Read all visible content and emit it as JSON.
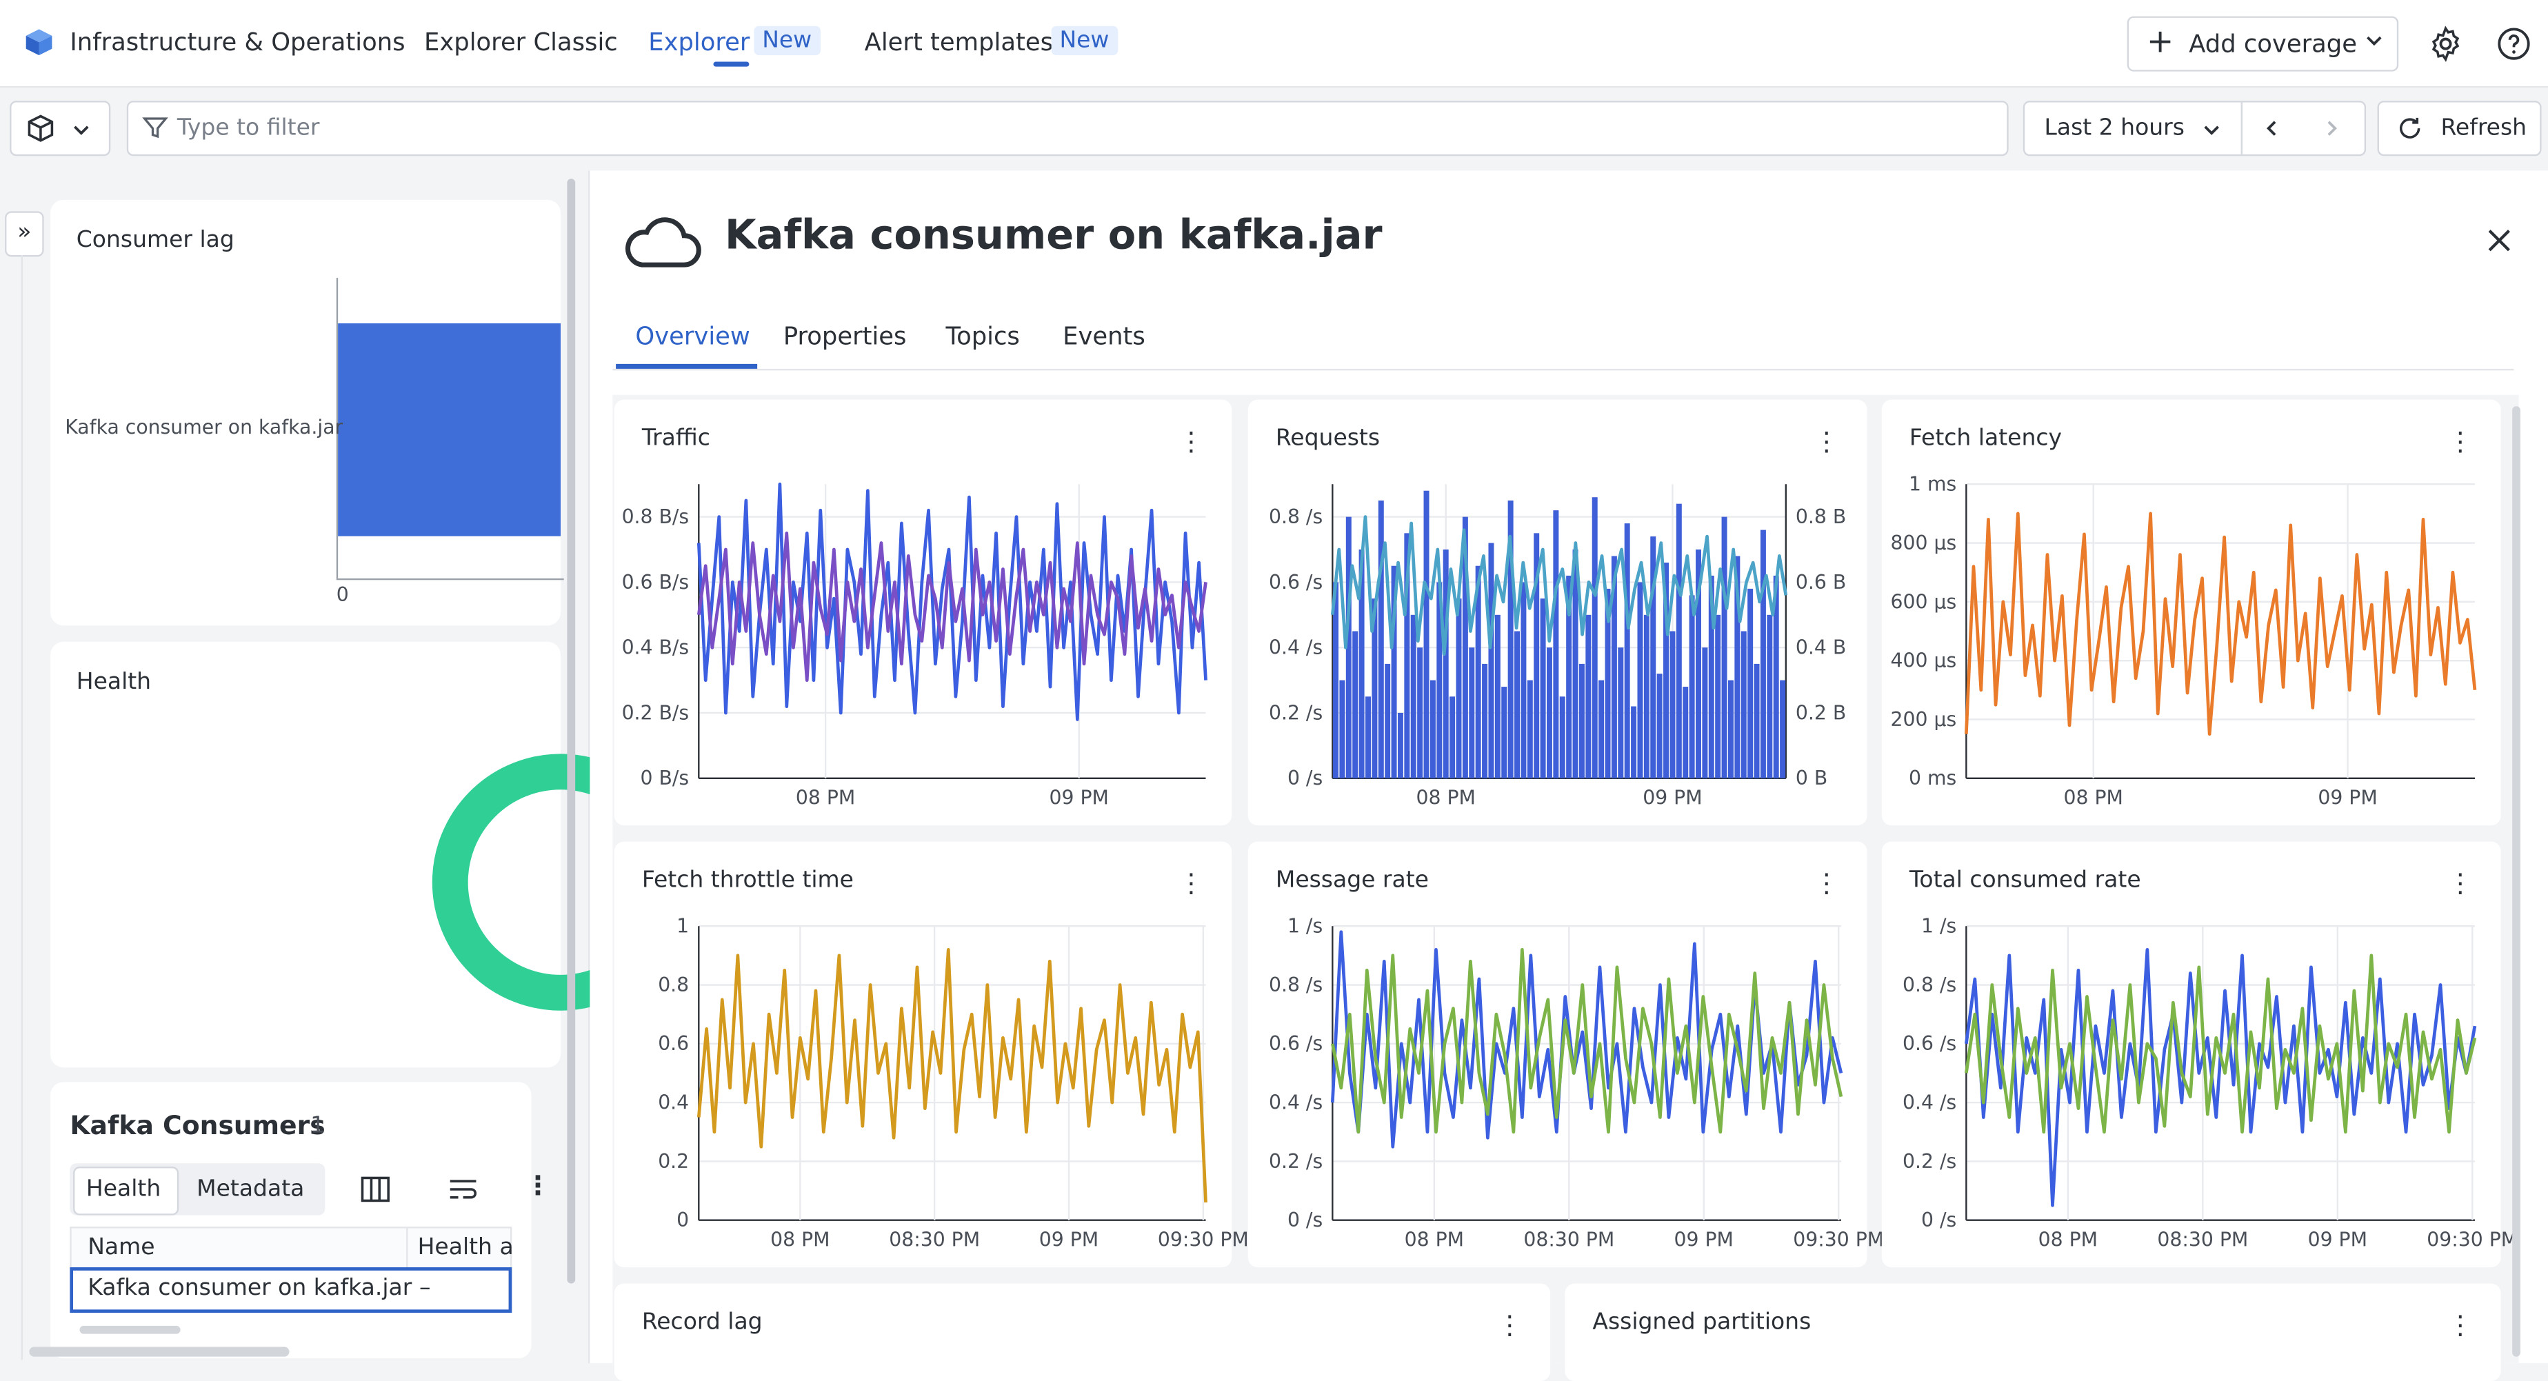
{
  "topnav": {
    "app_name": "Infrastructure & Operations",
    "explorer_classic": "Explorer Classic",
    "explorer": "Explorer",
    "explorer_badge": "New",
    "alert_templates": "Alert templates",
    "alert_badge": "New",
    "add_coverage": "Add coverage"
  },
  "filterbar": {
    "placeholder": "Type to filter",
    "timeframe": "Last 2 hours",
    "refresh": "Refresh"
  },
  "left": {
    "consumer_lag": {
      "title": "Consumer lag",
      "bar_label": "Kafka consumer on kafka.jar",
      "axis_zero": "0"
    },
    "health": {
      "title": "Health"
    },
    "consumers": {
      "title": "Kafka Consumers",
      "count": "1",
      "tab_health": "Health",
      "tab_metadata": "Metadata",
      "col_name": "Name",
      "col_health": "Health a",
      "row_name": "Kafka consumer on kafka.jar",
      "row_health": "–"
    }
  },
  "detail": {
    "title": "Kafka consumer on kafka.jar",
    "tabs": [
      "Overview",
      "Properties",
      "Topics",
      "Events"
    ],
    "tiles": {
      "traffic": "Traffic",
      "requests": "Requests",
      "fetch_latency": "Fetch latency",
      "fetch_throttle": "Fetch throttle time",
      "message_rate": "Message rate",
      "total_consumed": "Total consumed rate",
      "record_lag": "Record lag",
      "assigned_partitions": "Assigned partitions"
    }
  },
  "colors": {
    "accent": "#2f63c8",
    "bar_blue": "#3f6ed8",
    "health_green": "#2fcf95",
    "line_blue": "#3b5fe0",
    "line_purple": "#7a4fc6",
    "line_teal": "#4ba3c8",
    "line_orange": "#e97b2b",
    "line_gold": "#d39a1e",
    "line_green": "#7db448"
  },
  "chart_data": [
    {
      "type": "line",
      "title": "Traffic",
      "x_ticks": [
        "08 PM",
        "09 PM"
      ],
      "y_ticks": [
        "0 B/s",
        "0.2 B/s",
        "0.4 B/s",
        "0.6 B/s",
        "0.8 B/s"
      ],
      "ylim": [
        0,
        0.9
      ],
      "series": [
        {
          "color": "#3b5fe0",
          "values": [
            0.72,
            0.3,
            0.55,
            0.8,
            0.2,
            0.6,
            0.45,
            0.85,
            0.25,
            0.5,
            0.7,
            0.35,
            0.9,
            0.22,
            0.6,
            0.48,
            0.75,
            0.3,
            0.82,
            0.4,
            0.55,
            0.2,
            0.7,
            0.6,
            0.38,
            0.88,
            0.25,
            0.5,
            0.66,
            0.3,
            0.78,
            0.45,
            0.2,
            0.6,
            0.82,
            0.35,
            0.58,
            0.7,
            0.25,
            0.48,
            0.86,
            0.3,
            0.62,
            0.4,
            0.75,
            0.22,
            0.55,
            0.8,
            0.35,
            0.6,
            0.45,
            0.7,
            0.28,
            0.84,
            0.4,
            0.6,
            0.18,
            0.72,
            0.5,
            0.38,
            0.8,
            0.3,
            0.62,
            0.45,
            0.7,
            0.25,
            0.56,
            0.82,
            0.35,
            0.6,
            0.48,
            0.2,
            0.75,
            0.4,
            0.66,
            0.3
          ]
        },
        {
          "color": "#7a4fc6",
          "values": [
            0.5,
            0.65,
            0.4,
            0.55,
            0.7,
            0.35,
            0.6,
            0.45,
            0.72,
            0.5,
            0.38,
            0.62,
            0.48,
            0.75,
            0.4,
            0.58,
            0.3,
            0.66,
            0.52,
            0.44,
            0.7,
            0.36,
            0.6,
            0.48,
            0.64,
            0.4,
            0.56,
            0.72,
            0.45,
            0.6,
            0.35,
            0.68,
            0.5,
            0.42,
            0.62,
            0.55,
            0.4,
            0.66,
            0.48,
            0.58,
            0.36,
            0.7,
            0.5,
            0.6,
            0.42,
            0.64,
            0.38,
            0.56,
            0.7,
            0.45,
            0.6,
            0.5,
            0.66,
            0.4,
            0.58,
            0.48,
            0.72,
            0.35,
            0.62,
            0.5,
            0.44,
            0.6,
            0.55,
            0.38,
            0.68,
            0.46,
            0.58,
            0.42,
            0.64,
            0.5,
            0.56,
            0.4,
            0.6,
            0.52,
            0.45,
            0.6
          ]
        }
      ]
    },
    {
      "type": "bar",
      "title": "Requests",
      "x_ticks": [
        "08 PM",
        "09 PM"
      ],
      "y_ticks": [
        "0 /s",
        "0.2 /s",
        "0.4 /s",
        "0.6 /s",
        "0.8 /s"
      ],
      "y2_ticks": [
        "0 B",
        "0.2 B",
        "0.4 B",
        "0.6 B",
        "0.8 B"
      ],
      "ylim": [
        0,
        0.9
      ],
      "series": [
        {
          "color": "#3f5fd8",
          "values": [
            0.6,
            0.3,
            0.8,
            0.45,
            0.7,
            0.25,
            0.55,
            0.85,
            0.35,
            0.65,
            0.2,
            0.75,
            0.5,
            0.4,
            0.88,
            0.3,
            0.6,
            0.7,
            0.25,
            0.55,
            0.8,
            0.4,
            0.65,
            0.35,
            0.72,
            0.5,
            0.28,
            0.85,
            0.45,
            0.6,
            0.3,
            0.75,
            0.55,
            0.4,
            0.82,
            0.25,
            0.62,
            0.7,
            0.35,
            0.5,
            0.86,
            0.3,
            0.58,
            0.68,
            0.4,
            0.78,
            0.22,
            0.6,
            0.5,
            0.74,
            0.32,
            0.66,
            0.45,
            0.84,
            0.28,
            0.56,
            0.7,
            0.4,
            0.62,
            0.5,
            0.8,
            0.3,
            0.68,
            0.45,
            0.58,
            0.35,
            0.76,
            0.5,
            0.62,
            0.3
          ]
        },
        {
          "color": "#4ba3c8",
          "values": [
            0.5,
            0.7,
            0.4,
            0.65,
            0.55,
            0.8,
            0.45,
            0.6,
            0.72,
            0.4,
            0.66,
            0.5,
            0.78,
            0.42,
            0.6,
            0.55,
            0.7,
            0.38,
            0.64,
            0.5,
            0.76,
            0.45,
            0.58,
            0.68,
            0.4,
            0.62,
            0.54,
            0.74,
            0.46,
            0.66,
            0.52,
            0.6,
            0.7,
            0.42,
            0.58,
            0.64,
            0.5,
            0.72,
            0.44,
            0.6,
            0.56,
            0.68,
            0.48,
            0.62,
            0.7,
            0.46,
            0.58,
            0.66,
            0.5,
            0.6,
            0.72,
            0.44,
            0.62,
            0.56,
            0.68,
            0.5,
            0.6,
            0.74,
            0.46,
            0.64,
            0.52,
            0.7,
            0.48,
            0.6,
            0.66,
            0.54,
            0.62,
            0.5,
            0.68,
            0.56
          ]
        }
      ]
    },
    {
      "type": "line",
      "title": "Fetch latency",
      "x_ticks": [
        "08 PM",
        "09 PM"
      ],
      "y_ticks": [
        "0 ms",
        "200 µs",
        "400 µs",
        "600 µs",
        "800 µs",
        "1 ms"
      ],
      "ylim": [
        0,
        1000
      ],
      "series": [
        {
          "color": "#e97b2b",
          "values": [
            150,
            720,
            300,
            880,
            250,
            600,
            420,
            900,
            350,
            520,
            280,
            760,
            400,
            620,
            180,
            540,
            830,
            300,
            470,
            650,
            260,
            580,
            720,
            340,
            500,
            900,
            220,
            610,
            380,
            760,
            290,
            540,
            680,
            150,
            450,
            820,
            330,
            600,
            480,
            700,
            260,
            520,
            640,
            310,
            860,
            400,
            560,
            240,
            680,
            380,
            500,
            620,
            300,
            760,
            440,
            590,
            220,
            700,
            360,
            520,
            640,
            280,
            880,
            420,
            580,
            320,
            700,
            460,
            540,
            300
          ]
        }
      ]
    },
    {
      "type": "line",
      "title": "Fetch throttle time",
      "x_ticks": [
        "08 PM",
        "08:30 PM",
        "09 PM",
        "09:30 PM"
      ],
      "y_ticks": [
        "0",
        "0.2",
        "0.4",
        "0.6",
        "0.8",
        "1"
      ],
      "ylim": [
        0,
        1
      ],
      "series": [
        {
          "color": "#d39a1e",
          "values": [
            0.35,
            0.65,
            0.3,
            0.75,
            0.45,
            0.9,
            0.4,
            0.6,
            0.25,
            0.7,
            0.5,
            0.85,
            0.35,
            0.62,
            0.48,
            0.78,
            0.3,
            0.55,
            0.9,
            0.4,
            0.68,
            0.32,
            0.8,
            0.5,
            0.6,
            0.28,
            0.72,
            0.45,
            0.86,
            0.38,
            0.64,
            0.5,
            0.92,
            0.3,
            0.58,
            0.7,
            0.42,
            0.8,
            0.35,
            0.62,
            0.48,
            0.75,
            0.3,
            0.66,
            0.52,
            0.88,
            0.4,
            0.6,
            0.45,
            0.72,
            0.32,
            0.58,
            0.68,
            0.4,
            0.8,
            0.5,
            0.62,
            0.36,
            0.74,
            0.46,
            0.58,
            0.3,
            0.7,
            0.52,
            0.64,
            0.06
          ]
        }
      ]
    },
    {
      "type": "line",
      "title": "Message rate",
      "x_ticks": [
        "08 PM",
        "08:30 PM",
        "09 PM",
        "09:30 PM"
      ],
      "y_ticks": [
        "0 /s",
        "0.2 /s",
        "0.4 /s",
        "0.6 /s",
        "0.8 /s",
        "1 /s"
      ],
      "ylim": [
        0,
        1
      ],
      "series": [
        {
          "color": "#3b5fe0",
          "values": [
            0.4,
            0.98,
            0.5,
            0.3,
            0.7,
            0.45,
            0.88,
            0.25,
            0.6,
            0.4,
            0.75,
            0.3,
            0.92,
            0.5,
            0.35,
            0.68,
            0.45,
            0.82,
            0.28,
            0.6,
            0.5,
            0.72,
            0.35,
            0.9,
            0.42,
            0.58,
            0.3,
            0.76,
            0.5,
            0.64,
            0.38,
            0.86,
            0.45,
            0.6,
            0.3,
            0.72,
            0.52,
            0.4,
            0.8,
            0.35,
            0.62,
            0.48,
            0.94,
            0.3,
            0.58,
            0.7,
            0.42,
            0.66,
            0.36,
            0.8,
            0.5,
            0.6,
            0.3,
            0.74,
            0.46,
            0.56,
            0.88,
            0.4,
            0.62,
            0.5
          ]
        },
        {
          "color": "#7db448",
          "values": [
            0.6,
            0.45,
            0.7,
            0.3,
            0.85,
            0.55,
            0.4,
            0.9,
            0.35,
            0.65,
            0.5,
            0.78,
            0.3,
            0.6,
            0.72,
            0.4,
            0.88,
            0.5,
            0.36,
            0.7,
            0.56,
            0.3,
            0.92,
            0.45,
            0.62,
            0.75,
            0.35,
            0.68,
            0.5,
            0.8,
            0.42,
            0.6,
            0.3,
            0.86,
            0.55,
            0.4,
            0.72,
            0.6,
            0.35,
            0.82,
            0.5,
            0.66,
            0.4,
            0.76,
            0.52,
            0.3,
            0.7,
            0.58,
            0.44,
            0.84,
            0.38,
            0.62,
            0.5,
            0.74,
            0.36,
            0.68,
            0.46,
            0.8,
            0.55,
            0.42
          ]
        }
      ]
    },
    {
      "type": "line",
      "title": "Total consumed rate",
      "x_ticks": [
        "08 PM",
        "08:30 PM",
        "09 PM",
        "09:30 PM"
      ],
      "y_ticks": [
        "0 /s",
        "0.2 /s",
        "0.4 /s",
        "0.6 /s",
        "0.8 /s",
        "1 /s"
      ],
      "ylim": [
        0,
        1
      ],
      "series": [
        {
          "color": "#3b5fe0",
          "values": [
            0.6,
            0.82,
            0.35,
            0.7,
            0.45,
            0.9,
            0.3,
            0.62,
            0.5,
            0.75,
            0.05,
            0.58,
            0.4,
            0.85,
            0.3,
            0.66,
            0.5,
            0.78,
            0.35,
            0.6,
            0.45,
            0.92,
            0.3,
            0.58,
            0.7,
            0.4,
            0.84,
            0.5,
            0.62,
            0.35,
            0.78,
            0.46,
            0.9,
            0.3,
            0.6,
            0.52,
            0.76,
            0.4,
            0.66,
            0.3,
            0.86,
            0.5,
            0.58,
            0.42,
            0.74,
            0.36,
            0.62,
            0.5,
            0.82,
            0.4,
            0.6,
            0.3,
            0.7,
            0.46,
            0.56,
            0.8,
            0.38,
            0.62,
            0.5,
            0.66
          ]
        },
        {
          "color": "#7db448",
          "values": [
            0.5,
            0.7,
            0.4,
            0.8,
            0.55,
            0.35,
            0.72,
            0.5,
            0.62,
            0.3,
            0.85,
            0.45,
            0.6,
            0.38,
            0.76,
            0.52,
            0.3,
            0.68,
            0.48,
            0.8,
            0.4,
            0.6,
            0.55,
            0.32,
            0.74,
            0.5,
            0.42,
            0.86,
            0.36,
            0.62,
            0.5,
            0.7,
            0.3,
            0.64,
            0.45,
            0.82,
            0.38,
            0.58,
            0.5,
            0.72,
            0.34,
            0.66,
            0.48,
            0.6,
            0.3,
            0.78,
            0.44,
            0.9,
            0.4,
            0.6,
            0.52,
            0.7,
            0.35,
            0.64,
            0.48,
            0.58,
            0.3,
            0.68,
            0.5,
            0.62
          ]
        }
      ]
    }
  ]
}
